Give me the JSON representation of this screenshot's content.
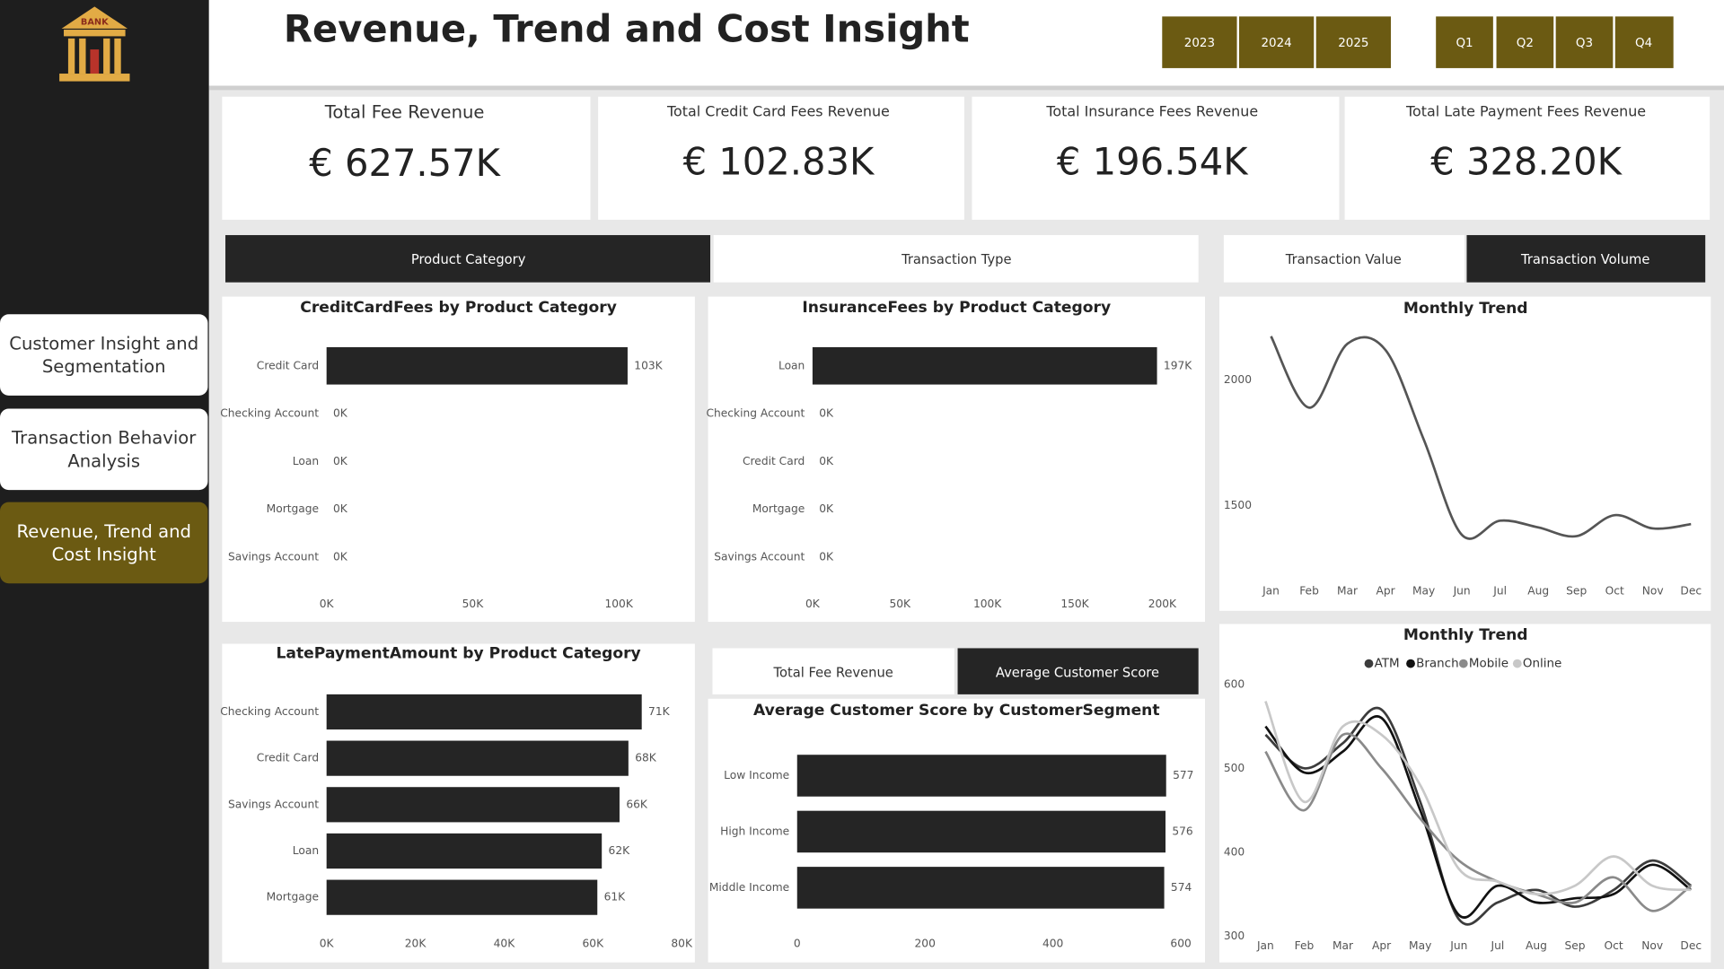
{
  "logo": "BANK",
  "title": "Revenue, Trend and Cost Insight",
  "years": [
    "2023",
    "2024",
    "2025"
  ],
  "quarters": [
    "Q1",
    "Q2",
    "Q3",
    "Q4"
  ],
  "nav": [
    "Customer Insight and Segmentation",
    "Transaction Behavior Analysis",
    "Revenue, Trend and Cost Insight"
  ],
  "kpis": [
    {
      "label": "Total Fee Revenue",
      "value": "€ 627.57K"
    },
    {
      "label": "Total Credit Card Fees Revenue",
      "value": "€ 102.83K"
    },
    {
      "label": "Total Insurance Fees Revenue",
      "value": "€ 196.54K"
    },
    {
      "label": "Total Late Payment Fees Revenue",
      "value": "€ 328.20K"
    }
  ],
  "tabs": {
    "category": [
      "Product Category",
      "Transaction Type"
    ],
    "trend": [
      "Transaction Value",
      "Transaction Volume"
    ],
    "score": [
      "Total Fee Revenue",
      "Average Customer Score"
    ]
  },
  "chart_data": [
    {
      "type": "hbar",
      "title": "CreditCardFees by Product Category",
      "categories": [
        "Credit Card",
        "Checking Account",
        "Loan",
        "Mortgage",
        "Savings Account"
      ],
      "values": [
        103000,
        0,
        0,
        0,
        0
      ],
      "value_labels": [
        "103K",
        "0K",
        "0K",
        "0K",
        "0K"
      ],
      "color": "#252525",
      "xlim": [
        0,
        120000
      ],
      "xticks": [
        {
          "value": 0,
          "label": "0K"
        },
        {
          "value": 50000,
          "label": "50K"
        },
        {
          "value": 100000,
          "label": "100K"
        }
      ]
    },
    {
      "type": "hbar",
      "title": "InsuranceFees by Product Category",
      "categories": [
        "Loan",
        "Checking Account",
        "Credit Card",
        "Mortgage",
        "Savings Account"
      ],
      "values": [
        197000,
        0,
        0,
        0,
        0
      ],
      "value_labels": [
        "197K",
        "0K",
        "0K",
        "0K",
        "0K"
      ],
      "color": "#252525",
      "xlim": [
        0,
        210000
      ],
      "xticks": [
        {
          "value": 0,
          "label": "0K"
        },
        {
          "value": 50000,
          "label": "50K"
        },
        {
          "value": 100000,
          "label": "100K"
        },
        {
          "value": 150000,
          "label": "150K"
        },
        {
          "value": 200000,
          "label": "200K"
        }
      ]
    },
    {
      "type": "line",
      "title": "Monthly Trend",
      "categories": [
        "Jan",
        "Feb",
        "Mar",
        "Apr",
        "May",
        "Jun",
        "Jul",
        "Aug",
        "Sep",
        "Oct",
        "Nov",
        "Dec"
      ],
      "values": [
        2175,
        1890,
        2145,
        2120,
        1763,
        1382,
        1439,
        1412,
        1377,
        1461,
        1408,
        1425
      ],
      "color": "#555555",
      "ylim": [
        1250,
        2250
      ],
      "yticks": [
        1500,
        2000
      ]
    },
    {
      "type": "hbar",
      "title": "LatePaymentAmount by Product Category",
      "categories": [
        "Checking Account",
        "Credit Card",
        "Savings Account",
        "Loan",
        "Mortgage"
      ],
      "values": [
        71000,
        68000,
        66000,
        62000,
        61000
      ],
      "value_labels": [
        "71K",
        "68K",
        "66K",
        "62K",
        "61K"
      ],
      "color": "#252525",
      "xlim": [
        0,
        80000
      ],
      "xticks": [
        {
          "value": 0,
          "label": "0K"
        },
        {
          "value": 20000,
          "label": "20K"
        },
        {
          "value": 40000,
          "label": "40K"
        },
        {
          "value": 60000,
          "label": "60K"
        },
        {
          "value": 80000,
          "label": "80K"
        }
      ]
    },
    {
      "type": "hbar",
      "title": "Average Customer Score by CustomerSegment",
      "categories": [
        "Low Income",
        "High Income",
        "Middle Income"
      ],
      "values": [
        577,
        576,
        574
      ],
      "color": "#252525",
      "xlim": [
        0,
        600
      ],
      "xticks": [
        0,
        200,
        400,
        600
      ]
    },
    {
      "type": "line",
      "title": "Monthly Trend",
      "categories": [
        "Jan",
        "Feb",
        "Mar",
        "Apr",
        "May",
        "Jun",
        "Jul",
        "Aug",
        "Sep",
        "Oct",
        "Nov",
        "Dec"
      ],
      "series": [
        {
          "name": "ATM",
          "color": "#3c3c3c",
          "values": [
            540,
            500,
            530,
            570,
            460,
            320,
            340,
            355,
            335,
            355,
            390,
            360
          ]
        },
        {
          "name": "Branch",
          "color": "#111111",
          "values": [
            550,
            495,
            520,
            560,
            450,
            325,
            360,
            340,
            345,
            350,
            385,
            355
          ]
        },
        {
          "name": "Mobile",
          "color": "#8a8a8a",
          "values": [
            520,
            450,
            540,
            500,
            440,
            390,
            365,
            350,
            340,
            370,
            330,
            360
          ]
        },
        {
          "name": "Online",
          "color": "#c8c8c8",
          "values": [
            580,
            460,
            550,
            540,
            480,
            380,
            365,
            350,
            360,
            395,
            360,
            355
          ]
        }
      ],
      "legend": "top",
      "ylim": [
        300,
        600
      ],
      "yticks": [
        300,
        400,
        500,
        600
      ]
    }
  ]
}
